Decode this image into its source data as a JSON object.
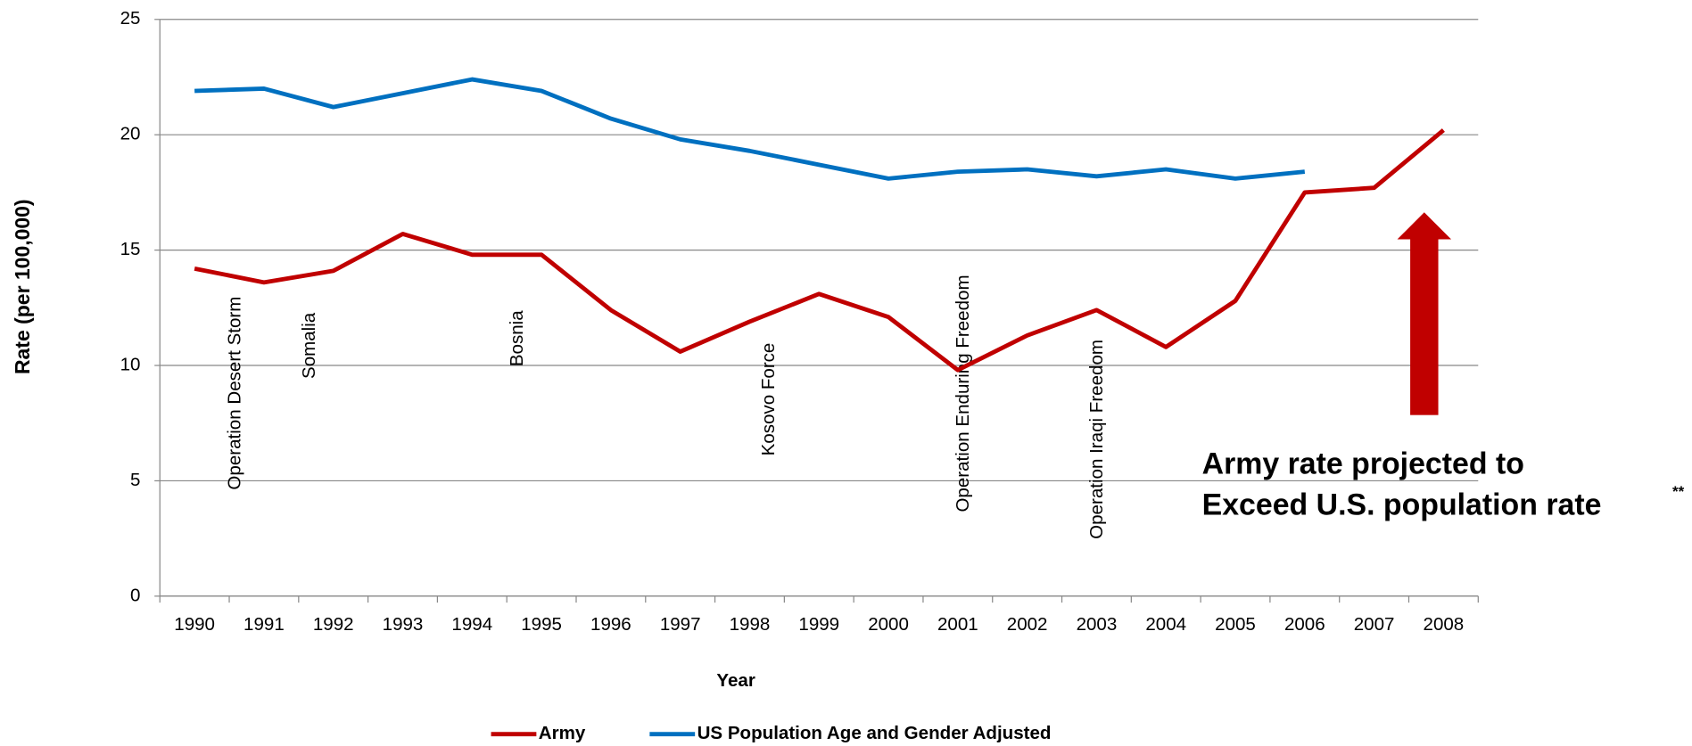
{
  "chart_data": {
    "type": "line",
    "x_label": "Year",
    "y_label": "Rate (per 100,000)",
    "categories": [
      "1990",
      "1991",
      "1992",
      "1993",
      "1994",
      "1995",
      "1996",
      "1997",
      "1998",
      "1999",
      "2000",
      "2001",
      "2002",
      "2003",
      "2004",
      "2005",
      "2006",
      "2007",
      "2008"
    ],
    "series": [
      {
        "name": "Army",
        "color": "#c00000",
        "values": [
          14.2,
          13.6,
          14.1,
          15.7,
          14.8,
          14.8,
          12.4,
          10.6,
          11.9,
          13.1,
          12.1,
          9.8,
          11.3,
          12.4,
          10.8,
          12.8,
          17.5,
          17.7,
          20.2
        ]
      },
      {
        "name": "US Population Age and Gender Adjusted",
        "color": "#0070c0",
        "values": [
          21.9,
          22.0,
          21.2,
          21.8,
          22.4,
          21.9,
          20.7,
          19.8,
          19.3,
          18.7,
          18.1,
          18.4,
          18.5,
          18.2,
          18.5,
          18.1,
          18.4,
          null,
          null
        ]
      }
    ],
    "ylim": [
      0,
      25
    ],
    "yticks": [
      0,
      5,
      10,
      15,
      20,
      25
    ],
    "grid": true,
    "legend": "bottom",
    "annotations": [
      "Operation  Desert Storm",
      "Somalia",
      "Bosnia",
      "Kosovo  Force",
      "Operation  Enduring Freedom",
      "Operation  Iraqi Freedom"
    ],
    "callout": {
      "lines": [
        "Army rate projected to",
        "Exceed U.S. population rate"
      ],
      "superscript": "**",
      "color": "#c00000"
    }
  }
}
